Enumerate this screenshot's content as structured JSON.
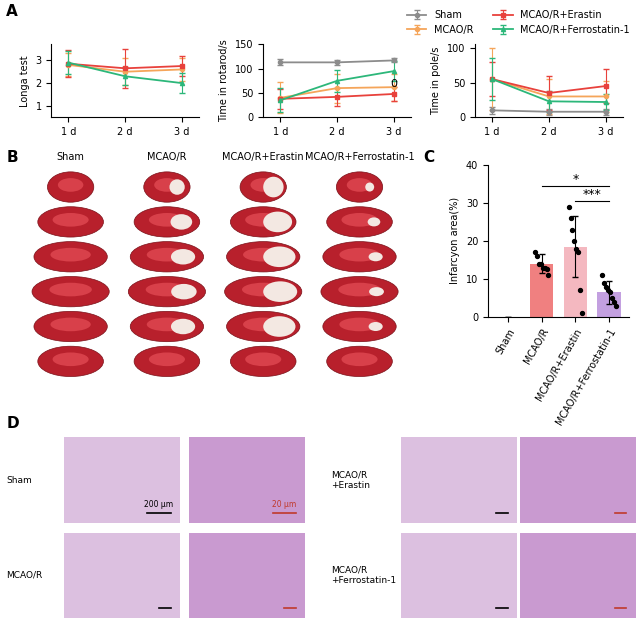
{
  "chart_data": [
    {
      "type": "line",
      "y_label": "Longa test",
      "categories": [
        "1 d",
        "2 d",
        "3 d"
      ],
      "ylim": [
        0.5,
        3.7
      ],
      "yticks": [
        1,
        2,
        3
      ],
      "series": [
        {
          "name": "MCAO/R",
          "color": "#f5a55a",
          "marker": "o",
          "line_style": "solid",
          "values": [
            2.8,
            2.5,
            2.6
          ],
          "errors": [
            0.5,
            0.6,
            0.5
          ]
        },
        {
          "name": "MCAO/R+Erastin",
          "color": "#e8413c",
          "marker": "s",
          "line_style": "solid",
          "values": [
            2.85,
            2.65,
            2.75
          ],
          "errors": [
            0.6,
            0.85,
            0.45
          ]
        },
        {
          "name": "MCAO/R+Ferrostatin-1",
          "color": "#2cb77a",
          "marker": "^",
          "line_style": "solid",
          "values": [
            2.9,
            2.3,
            2.0
          ],
          "errors": [
            0.5,
            0.4,
            0.45
          ]
        }
      ]
    },
    {
      "type": "line",
      "y_label": "Time in rotarod/s",
      "categories": [
        "1 d",
        "2 d",
        "3 d"
      ],
      "ylim": [
        0,
        150
      ],
      "yticks": [
        0,
        50,
        100,
        150
      ],
      "annotations": [
        {
          "text": "0",
          "x": "3 d",
          "y": 68
        }
      ],
      "series": [
        {
          "name": "Sham",
          "color": "#8c8c8c",
          "marker": "o",
          "line_style": "solid",
          "values": [
            113,
            113,
            117
          ],
          "errors": [
            6,
            5,
            4
          ]
        },
        {
          "name": "MCAO/R",
          "color": "#f5a55a",
          "marker": "o",
          "line_style": "solid",
          "values": [
            40,
            60,
            62
          ],
          "errors": [
            32,
            30,
            28
          ]
        },
        {
          "name": "MCAO/R+Erastin",
          "color": "#e8413c",
          "marker": "s",
          "line_style": "solid",
          "values": [
            38,
            42,
            48
          ],
          "errors": [
            20,
            18,
            15
          ]
        },
        {
          "name": "MCAO/R+Ferrostatin-1",
          "color": "#2cb77a",
          "marker": "^",
          "line_style": "solid",
          "values": [
            35,
            75,
            95
          ],
          "errors": [
            25,
            22,
            20
          ]
        }
      ]
    },
    {
      "type": "line",
      "y_label": "Time in pole/s",
      "categories": [
        "1 d",
        "2 d",
        "3 d"
      ],
      "ylim": [
        0,
        105
      ],
      "yticks": [
        0,
        50,
        100
      ],
      "legend": "upper right",
      "series": [
        {
          "name": "Sham",
          "color": "#8c8c8c",
          "marker": "o",
          "line_style": "solid",
          "values": [
            10,
            8,
            8
          ],
          "errors": [
            5,
            4,
            4
          ]
        },
        {
          "name": "MCAO/R",
          "color": "#f5a55a",
          "marker": "o",
          "line_style": "solid",
          "values": [
            55,
            30,
            30
          ],
          "errors": [
            45,
            25,
            22
          ]
        },
        {
          "name": "MCAO/R+Erastin",
          "color": "#e8413c",
          "marker": "s",
          "line_style": "solid",
          "values": [
            55,
            35,
            45
          ],
          "errors": [
            25,
            25,
            24
          ]
        },
        {
          "name": "MCAO/R+Ferrostatin-1",
          "color": "#2cb77a",
          "marker": "^",
          "line_style": "solid",
          "values": [
            55,
            23,
            22
          ],
          "errors": [
            30,
            15,
            12
          ]
        }
      ]
    },
    {
      "type": "bar",
      "y_label": "Infarcyon area(%)",
      "categories": [
        "Sham",
        "MCAO/R",
        "MCAO/R+Erastin",
        "MCAO/R+Ferrostatin-1"
      ],
      "values": [
        0,
        14,
        18.5,
        6.5
      ],
      "errors": [
        0,
        2.5,
        8,
        3
      ],
      "colors": [
        "#f08080",
        "#f08080",
        "#f4b8c0",
        "#c3a0e0"
      ],
      "points": [
        [],
        [
          17,
          16,
          14,
          14,
          13,
          13,
          12.5,
          11
        ],
        [
          29,
          26,
          23,
          20,
          18,
          17,
          7,
          1
        ],
        [
          11,
          9,
          8,
          7,
          6.5,
          5,
          4,
          3
        ]
      ],
      "ylim": [
        0,
        40
      ],
      "yticks": [
        0,
        10,
        20,
        30,
        40
      ],
      "significance": [
        {
          "text": "***",
          "between": [
            "MCAO/R+Erastin",
            "MCAO/R+Ferrostatin-1"
          ]
        },
        {
          "text": "*",
          "between": [
            "MCAO/R",
            "MCAO/R+Ferrostatin-1"
          ]
        }
      ]
    }
  ],
  "panel_labels": [
    "A",
    "B",
    "C",
    "D"
  ],
  "panel_B": {
    "columns": [
      "Sham",
      "MCAO/R",
      "MCAO/R+Erastin",
      "MCAO/R+Ferrostatin-1"
    ]
  },
  "panel_D": {
    "rows": [
      "Sham",
      "MCAO/R",
      "MCAO/R\n+Erastin",
      "MCAO/R\n+Ferrostatin-1"
    ],
    "scale_bars": [
      "200 μm",
      "20 μm"
    ]
  }
}
